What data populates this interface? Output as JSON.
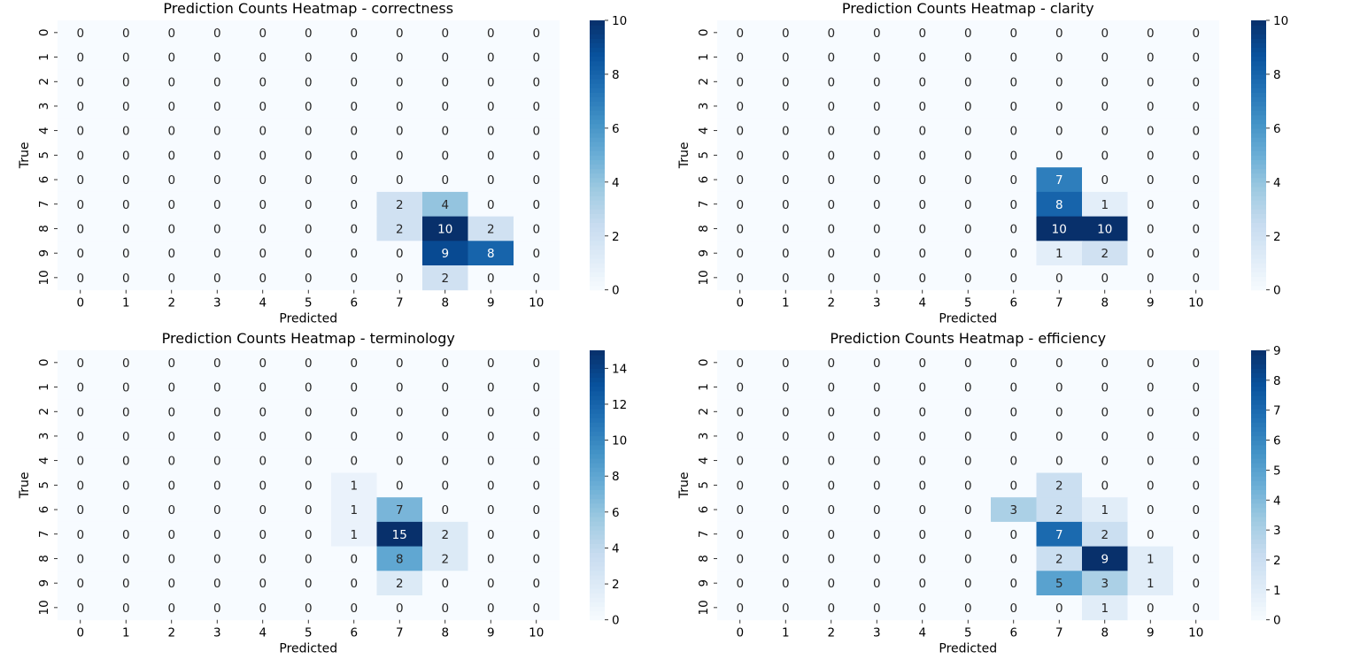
{
  "chart_data": [
    {
      "type": "heatmap",
      "title": "Prediction Counts Heatmap - correctness",
      "xlabel": "Predicted",
      "ylabel": "True",
      "x_categories": [
        "0",
        "1",
        "2",
        "3",
        "4",
        "5",
        "6",
        "7",
        "8",
        "9",
        "10"
      ],
      "y_categories": [
        "0",
        "1",
        "2",
        "3",
        "4",
        "5",
        "6",
        "7",
        "8",
        "9",
        "10"
      ],
      "vmin": 0,
      "vmax": 10,
      "colorbar_ticks": [
        0,
        2,
        4,
        6,
        8,
        10
      ],
      "colormap": "Blues",
      "values": [
        [
          0,
          0,
          0,
          0,
          0,
          0,
          0,
          0,
          0,
          0,
          0
        ],
        [
          0,
          0,
          0,
          0,
          0,
          0,
          0,
          0,
          0,
          0,
          0
        ],
        [
          0,
          0,
          0,
          0,
          0,
          0,
          0,
          0,
          0,
          0,
          0
        ],
        [
          0,
          0,
          0,
          0,
          0,
          0,
          0,
          0,
          0,
          0,
          0
        ],
        [
          0,
          0,
          0,
          0,
          0,
          0,
          0,
          0,
          0,
          0,
          0
        ],
        [
          0,
          0,
          0,
          0,
          0,
          0,
          0,
          0,
          0,
          0,
          0
        ],
        [
          0,
          0,
          0,
          0,
          0,
          0,
          0,
          0,
          0,
          0,
          0
        ],
        [
          0,
          0,
          0,
          0,
          0,
          0,
          0,
          2,
          4,
          0,
          0
        ],
        [
          0,
          0,
          0,
          0,
          0,
          0,
          0,
          2,
          10,
          2,
          0
        ],
        [
          0,
          0,
          0,
          0,
          0,
          0,
          0,
          0,
          9,
          8,
          0
        ],
        [
          0,
          0,
          0,
          0,
          0,
          0,
          0,
          0,
          2,
          0,
          0
        ]
      ]
    },
    {
      "type": "heatmap",
      "title": "Prediction Counts Heatmap - clarity",
      "xlabel": "Predicted",
      "ylabel": "True",
      "x_categories": [
        "0",
        "1",
        "2",
        "3",
        "4",
        "5",
        "6",
        "7",
        "8",
        "9",
        "10"
      ],
      "y_categories": [
        "0",
        "1",
        "2",
        "3",
        "4",
        "5",
        "6",
        "7",
        "8",
        "9",
        "10"
      ],
      "vmin": 0,
      "vmax": 10,
      "colorbar_ticks": [
        0,
        2,
        4,
        6,
        8,
        10
      ],
      "colormap": "Blues",
      "values": [
        [
          0,
          0,
          0,
          0,
          0,
          0,
          0,
          0,
          0,
          0,
          0
        ],
        [
          0,
          0,
          0,
          0,
          0,
          0,
          0,
          0,
          0,
          0,
          0
        ],
        [
          0,
          0,
          0,
          0,
          0,
          0,
          0,
          0,
          0,
          0,
          0
        ],
        [
          0,
          0,
          0,
          0,
          0,
          0,
          0,
          0,
          0,
          0,
          0
        ],
        [
          0,
          0,
          0,
          0,
          0,
          0,
          0,
          0,
          0,
          0,
          0
        ],
        [
          0,
          0,
          0,
          0,
          0,
          0,
          0,
          0,
          0,
          0,
          0
        ],
        [
          0,
          0,
          0,
          0,
          0,
          0,
          0,
          7,
          0,
          0,
          0
        ],
        [
          0,
          0,
          0,
          0,
          0,
          0,
          0,
          8,
          1,
          0,
          0
        ],
        [
          0,
          0,
          0,
          0,
          0,
          0,
          0,
          10,
          10,
          0,
          0
        ],
        [
          0,
          0,
          0,
          0,
          0,
          0,
          0,
          1,
          2,
          0,
          0
        ],
        [
          0,
          0,
          0,
          0,
          0,
          0,
          0,
          0,
          0,
          0,
          0
        ]
      ]
    },
    {
      "type": "heatmap",
      "title": "Prediction Counts Heatmap - terminology",
      "xlabel": "Predicted",
      "ylabel": "True",
      "x_categories": [
        "0",
        "1",
        "2",
        "3",
        "4",
        "5",
        "6",
        "7",
        "8",
        "9",
        "10"
      ],
      "y_categories": [
        "0",
        "1",
        "2",
        "3",
        "4",
        "5",
        "6",
        "7",
        "8",
        "9",
        "10"
      ],
      "vmin": 0,
      "vmax": 15,
      "colorbar_ticks": [
        0,
        2,
        4,
        6,
        8,
        10,
        12,
        14
      ],
      "colormap": "Blues",
      "values": [
        [
          0,
          0,
          0,
          0,
          0,
          0,
          0,
          0,
          0,
          0,
          0
        ],
        [
          0,
          0,
          0,
          0,
          0,
          0,
          0,
          0,
          0,
          0,
          0
        ],
        [
          0,
          0,
          0,
          0,
          0,
          0,
          0,
          0,
          0,
          0,
          0
        ],
        [
          0,
          0,
          0,
          0,
          0,
          0,
          0,
          0,
          0,
          0,
          0
        ],
        [
          0,
          0,
          0,
          0,
          0,
          0,
          0,
          0,
          0,
          0,
          0
        ],
        [
          0,
          0,
          0,
          0,
          0,
          0,
          1,
          0,
          0,
          0,
          0
        ],
        [
          0,
          0,
          0,
          0,
          0,
          0,
          1,
          7,
          0,
          0,
          0
        ],
        [
          0,
          0,
          0,
          0,
          0,
          0,
          1,
          15,
          2,
          0,
          0
        ],
        [
          0,
          0,
          0,
          0,
          0,
          0,
          0,
          8,
          2,
          0,
          0
        ],
        [
          0,
          0,
          0,
          0,
          0,
          0,
          0,
          2,
          0,
          0,
          0
        ],
        [
          0,
          0,
          0,
          0,
          0,
          0,
          0,
          0,
          0,
          0,
          0
        ]
      ]
    },
    {
      "type": "heatmap",
      "title": "Prediction Counts Heatmap - efficiency",
      "xlabel": "Predicted",
      "ylabel": "True",
      "x_categories": [
        "0",
        "1",
        "2",
        "3",
        "4",
        "5",
        "6",
        "7",
        "8",
        "9",
        "10"
      ],
      "y_categories": [
        "0",
        "1",
        "2",
        "3",
        "4",
        "5",
        "6",
        "7",
        "8",
        "9",
        "10"
      ],
      "vmin": 0,
      "vmax": 9,
      "colorbar_ticks": [
        0,
        1,
        2,
        3,
        4,
        5,
        6,
        7,
        8,
        9
      ],
      "colormap": "Blues",
      "values": [
        [
          0,
          0,
          0,
          0,
          0,
          0,
          0,
          0,
          0,
          0,
          0
        ],
        [
          0,
          0,
          0,
          0,
          0,
          0,
          0,
          0,
          0,
          0,
          0
        ],
        [
          0,
          0,
          0,
          0,
          0,
          0,
          0,
          0,
          0,
          0,
          0
        ],
        [
          0,
          0,
          0,
          0,
          0,
          0,
          0,
          0,
          0,
          0,
          0
        ],
        [
          0,
          0,
          0,
          0,
          0,
          0,
          0,
          0,
          0,
          0,
          0
        ],
        [
          0,
          0,
          0,
          0,
          0,
          0,
          0,
          2,
          0,
          0,
          0
        ],
        [
          0,
          0,
          0,
          0,
          0,
          0,
          3,
          2,
          1,
          0,
          0
        ],
        [
          0,
          0,
          0,
          0,
          0,
          0,
          0,
          7,
          2,
          0,
          0
        ],
        [
          0,
          0,
          0,
          0,
          0,
          0,
          0,
          2,
          9,
          1,
          0
        ],
        [
          0,
          0,
          0,
          0,
          0,
          0,
          0,
          5,
          3,
          1,
          0
        ],
        [
          0,
          0,
          0,
          0,
          0,
          0,
          0,
          0,
          1,
          0,
          0
        ]
      ]
    }
  ]
}
